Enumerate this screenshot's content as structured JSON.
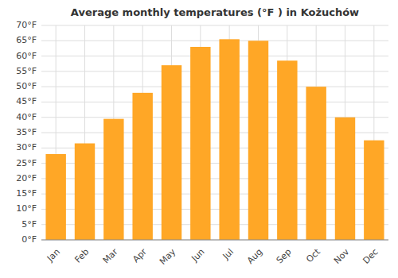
{
  "chart_data": {
    "type": "bar",
    "title": "Average monthly temperatures (°F ) in Kożuchów",
    "categories": [
      "Jan",
      "Feb",
      "Mar",
      "Apr",
      "May",
      "Jun",
      "Jul",
      "Aug",
      "Sep",
      "Oct",
      "Nov",
      "Dec"
    ],
    "values": [
      28,
      31.5,
      39.5,
      48,
      57,
      63,
      65.5,
      65,
      58.5,
      50,
      40,
      32.5
    ],
    "color": "#FFA726",
    "ylim": [
      0,
      70
    ],
    "yticks": [
      {
        "value": 0,
        "label": "0°F"
      },
      {
        "value": 5,
        "label": "5°F"
      },
      {
        "value": 10,
        "label": "10°F"
      },
      {
        "value": 15,
        "label": "15°F"
      },
      {
        "value": 20,
        "label": "20°F"
      },
      {
        "value": 25,
        "label": "25°F"
      },
      {
        "value": 30,
        "label": "30°F"
      },
      {
        "value": 35,
        "label": "35°F"
      },
      {
        "value": 40,
        "label": "40°F"
      },
      {
        "value": 45,
        "label": "45°F"
      },
      {
        "value": 50,
        "label": "50°F"
      },
      {
        "value": 55,
        "label": "55°F"
      },
      {
        "value": 60,
        "label": "60°F"
      },
      {
        "value": 65,
        "label": "65°F"
      },
      {
        "value": 70,
        "label": "70°F"
      }
    ],
    "grid": true
  }
}
